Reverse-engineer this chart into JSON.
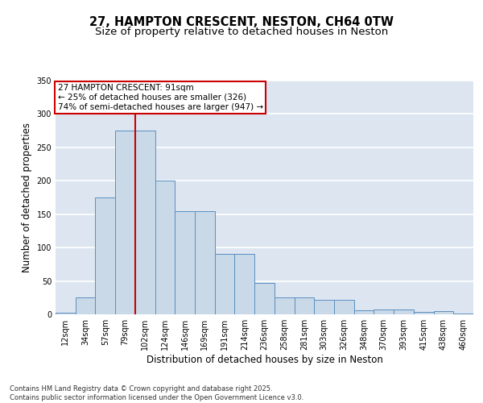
{
  "title_line1": "27, HAMPTON CRESCENT, NESTON, CH64 0TW",
  "title_line2": "Size of property relative to detached houses in Neston",
  "xlabel": "Distribution of detached houses by size in Neston",
  "ylabel": "Number of detached properties",
  "bin_labels": [
    "12sqm",
    "34sqm",
    "57sqm",
    "79sqm",
    "102sqm",
    "124sqm",
    "146sqm",
    "169sqm",
    "191sqm",
    "214sqm",
    "236sqm",
    "258sqm",
    "281sqm",
    "303sqm",
    "326sqm",
    "348sqm",
    "370sqm",
    "393sqm",
    "415sqm",
    "438sqm",
    "460sqm"
  ],
  "bar_heights": [
    2,
    25,
    175,
    275,
    275,
    200,
    155,
    155,
    90,
    90,
    47,
    25,
    25,
    22,
    22,
    6,
    7,
    7,
    4,
    5,
    1
  ],
  "bar_color": "#c9d9e8",
  "bar_edge_color": "#5a8fc0",
  "background_color": "#dde6f0",
  "grid_color": "#ffffff",
  "vline_x": 3.5,
  "vline_color": "#cc0000",
  "annotation_text": "27 HAMPTON CRESCENT: 91sqm\n← 25% of detached houses are smaller (326)\n74% of semi-detached houses are larger (947) →",
  "annotation_box_color": "#ffffff",
  "annotation_box_edge": "#cc0000",
  "ylim": [
    0,
    350
  ],
  "yticks": [
    0,
    50,
    100,
    150,
    200,
    250,
    300,
    350
  ],
  "footnote": "Contains HM Land Registry data © Crown copyright and database right 2025.\nContains public sector information licensed under the Open Government Licence v3.0.",
  "title_fontsize": 10.5,
  "subtitle_fontsize": 9.5,
  "axis_label_fontsize": 8.5,
  "tick_fontsize": 7,
  "annotation_fontsize": 7.5,
  "footnote_fontsize": 6
}
